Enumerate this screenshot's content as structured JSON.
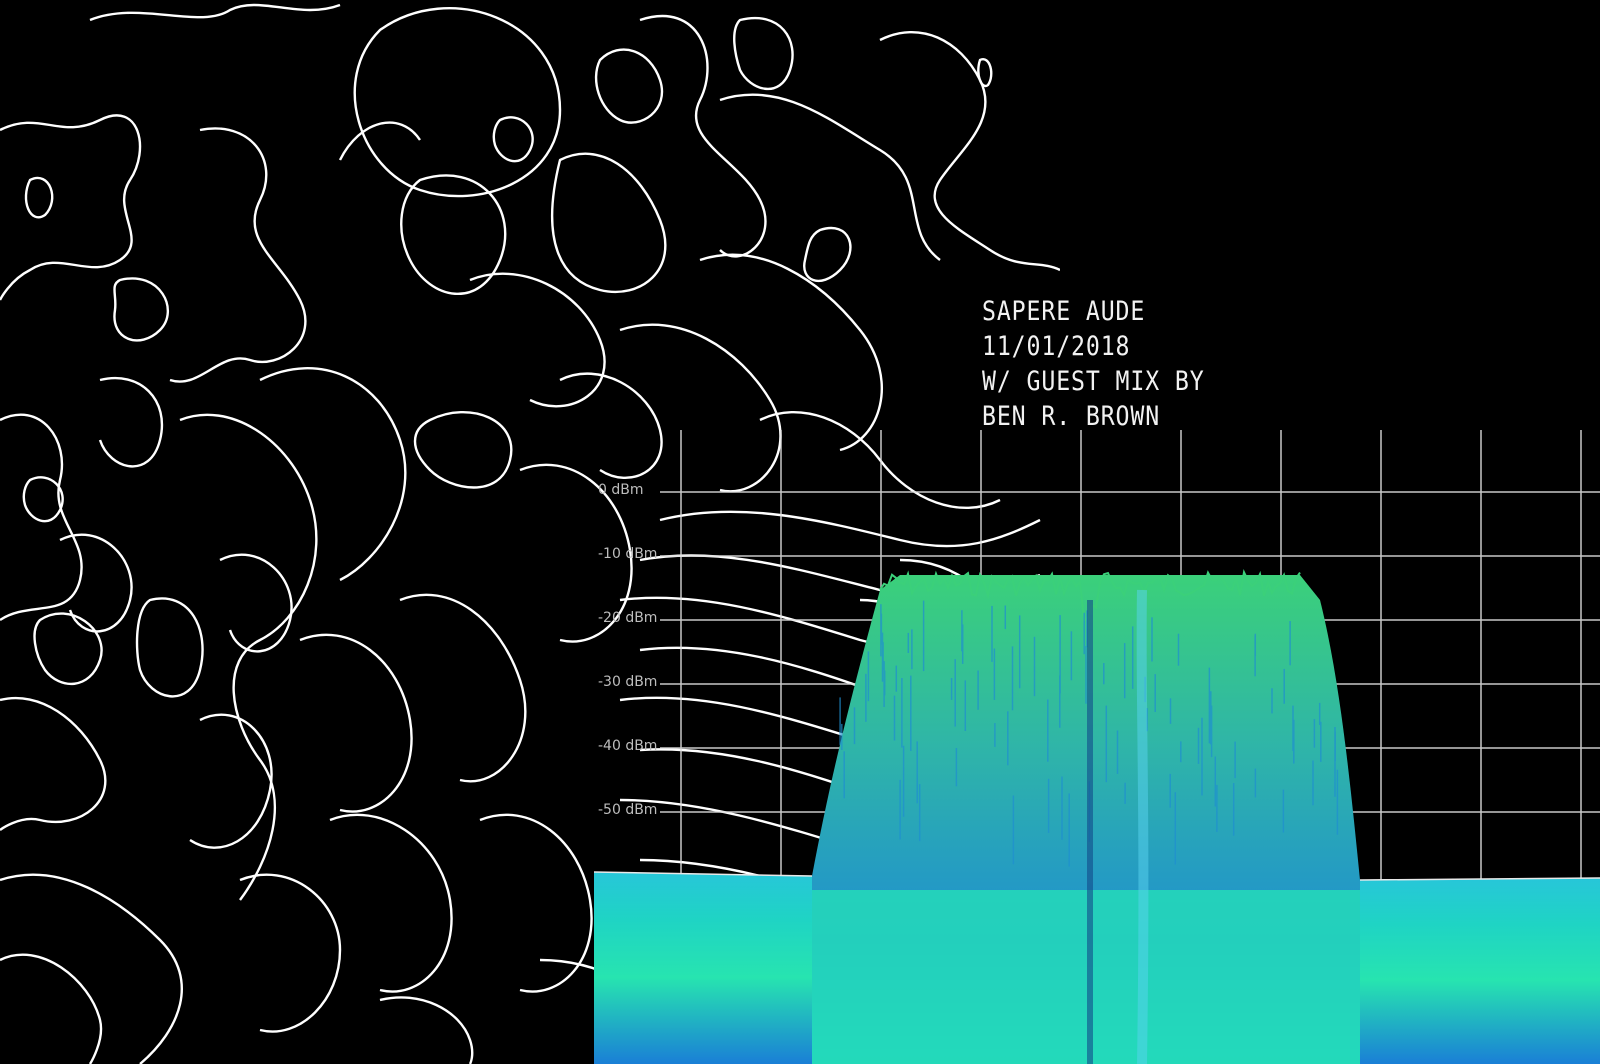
{
  "caption": {
    "line1": "SAPERE AUDE",
    "line2": "11/01/2018",
    "line3": "W/ GUEST MIX BY",
    "line4": "BEN R. BROWN"
  },
  "spectrum": {
    "levels": [
      "0 dBm",
      "-10 dBm",
      "-20 dBm",
      "-30 dBm",
      "-40 dBm",
      "-50 dBm"
    ],
    "colors": {
      "trace": "#1fd4c4",
      "peak": "#3bd07a",
      "grid": "#dddddd",
      "contour": "#ffffff"
    }
  }
}
